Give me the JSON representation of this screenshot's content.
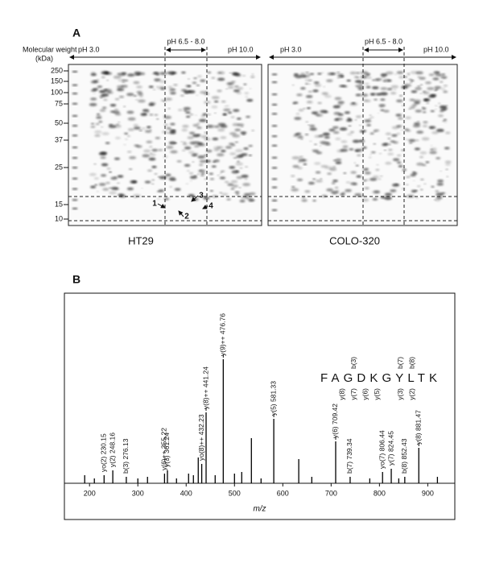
{
  "panel_a": {
    "label": "A",
    "mw_title": [
      "Molecular weight",
      "(kDa)"
    ],
    "mw_ticks": [
      250,
      150,
      100,
      75,
      50,
      37,
      25,
      15,
      10
    ],
    "ph_low": "pH 3.0",
    "ph_high": "pH 10.0",
    "ph_mid": "pH 6.5 - 8.0",
    "gels": [
      "HT29",
      "COLO-320"
    ],
    "spots": [
      "1",
      "2",
      "3",
      "4"
    ]
  },
  "chart_data": {
    "type": "spectrum",
    "label": "B",
    "x_label": "m/z",
    "xlim": [
      148,
      956
    ],
    "xticks": [
      200,
      300,
      400,
      500,
      600,
      700,
      800,
      900
    ],
    "ylim": [
      0,
      100
    ],
    "color": "#000000",
    "peaks": {
      "x": [
        190,
        210,
        230.15,
        248.16,
        276.13,
        300,
        320,
        355.22,
        361.24,
        380,
        405,
        415,
        425,
        432.23,
        441.24,
        460,
        476.76,
        500,
        515,
        535,
        555,
        581.33,
        633,
        660,
        709.42,
        739.34,
        780,
        806.44,
        824.45,
        840,
        852.43,
        881.47,
        920
      ],
      "values": [
        5,
        3,
        5,
        8,
        4,
        3,
        4,
        6,
        8,
        3,
        6,
        5,
        16,
        12,
        44,
        5,
        77,
        6,
        7,
        28,
        3,
        40,
        15,
        4,
        26,
        4,
        3,
        7,
        9,
        3,
        4,
        22,
        4
      ]
    },
    "annotations": [
      {
        "x": 230.15,
        "label": "yo(2) 230.15"
      },
      {
        "x": 248.16,
        "label": "y(2) 248.16"
      },
      {
        "x": 276.13,
        "label": "b(3) 276.13"
      },
      {
        "x": 355.22,
        "label": "y(6)++ 355.22"
      },
      {
        "x": 361.24,
        "label": "y(3) 361.24"
      },
      {
        "x": 432.23,
        "label": "yo(8)++ 432.23"
      },
      {
        "x": 441.24,
        "label": "y(8)++ 441.24"
      },
      {
        "x": 476.76,
        "label": "y(9)++ 476.76"
      },
      {
        "x": 581.33,
        "label": "y(5) 581.33"
      },
      {
        "x": 709.42,
        "label": "y(6) 709.42"
      },
      {
        "x": 739.34,
        "label": "b(7) 739.34"
      },
      {
        "x": 806.44,
        "label": "yo(7) 806.44"
      },
      {
        "x": 824.45,
        "label": "y(7) 824.45"
      },
      {
        "x": 852.43,
        "label": "b(8) 852.43"
      },
      {
        "x": 881.47,
        "label": "y(8) 881.47"
      }
    ],
    "sequence": "FAGDKGYLTK",
    "b_ions": [
      "b(3)",
      "b(7)",
      "b(8)"
    ],
    "y_ions": [
      "y(8)",
      "y(7)",
      "y(6)",
      "y(5)",
      "y(3)",
      "y(2)"
    ]
  }
}
